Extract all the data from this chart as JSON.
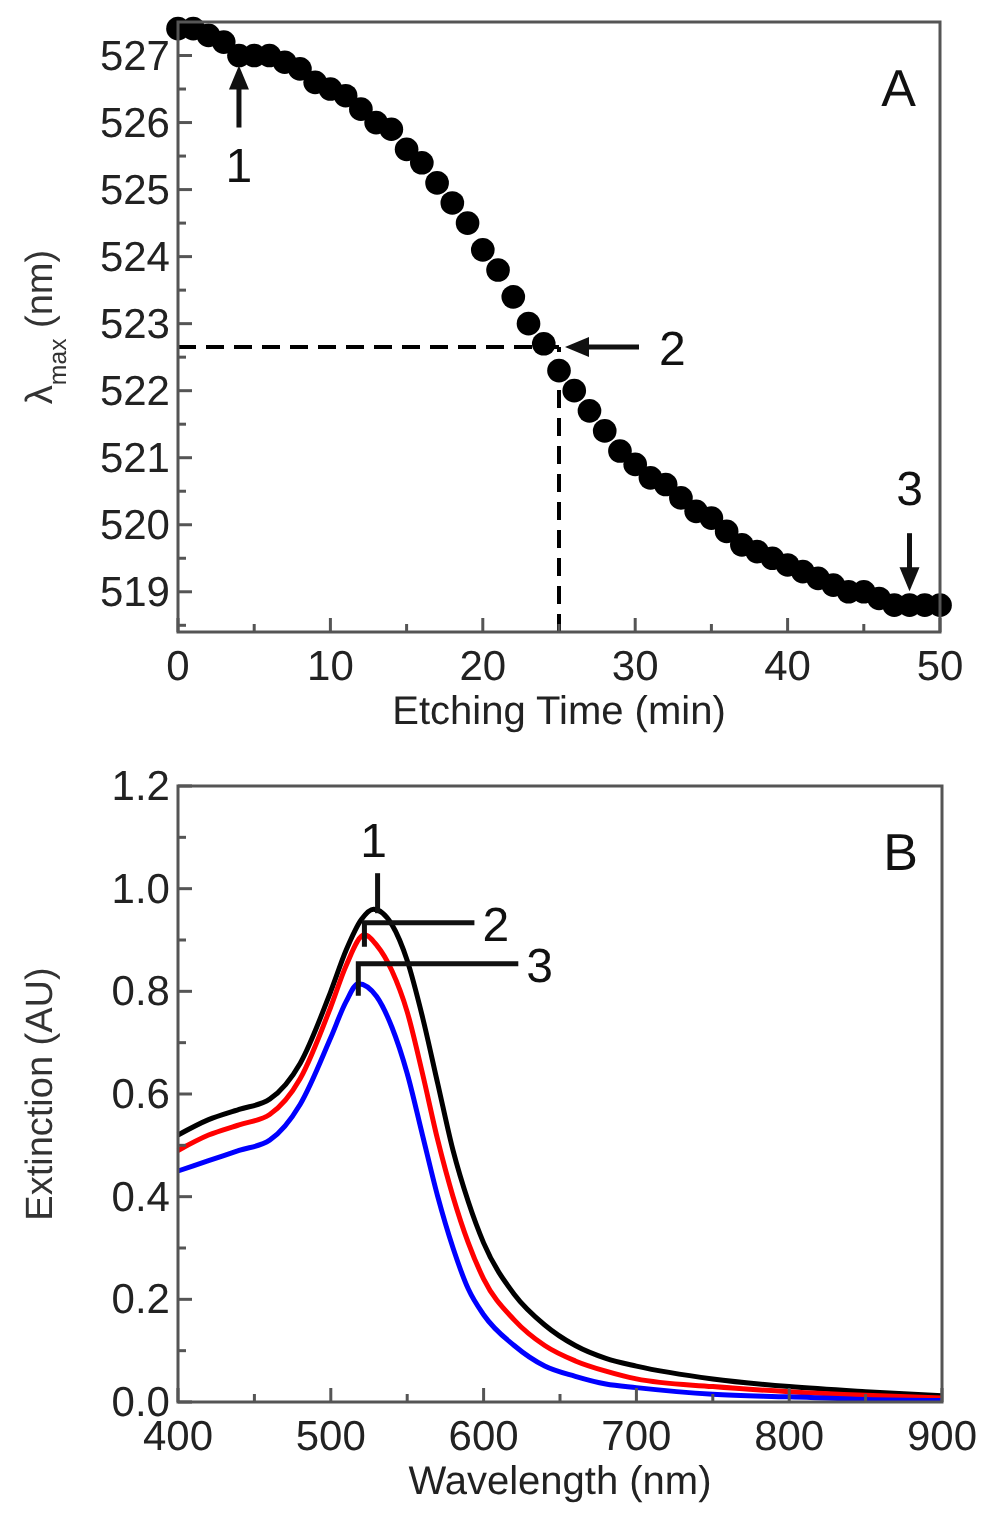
{
  "chart_data": [
    {
      "type": "scatter",
      "xlabel": "Etching Time (min)",
      "ylabel": "λ$_{max}$ (nm)",
      "xlim": [
        0,
        50
      ],
      "ylim": [
        518.4,
        527.5
      ],
      "xticks": [
        0,
        {
          "value": 5,
          "label": null
        },
        10,
        {
          "value": 15,
          "label": null
        },
        20,
        {
          "value": 25,
          "label": null
        },
        30,
        {
          "value": 35,
          "label": null
        },
        40,
        {
          "value": 45,
          "label": null
        },
        50
      ],
      "yticks": [
        {
          "value": 518.5,
          "label": null
        },
        519,
        {
          "value": 519.5,
          "label": null
        },
        520,
        {
          "value": 520.5,
          "label": null
        },
        521,
        {
          "value": 521.5,
          "label": null
        },
        522,
        {
          "value": 522.5,
          "label": null
        },
        523,
        {
          "value": 523.5,
          "label": null
        },
        524,
        {
          "value": 524.5,
          "label": null
        },
        525,
        {
          "value": 525.5,
          "label": null
        },
        526,
        {
          "value": 526.5,
          "label": null
        },
        527
      ],
      "marker": "circle",
      "grid": false,
      "series": [
        {
          "color": "#000000",
          "x": [
            0,
            1,
            2,
            3,
            4,
            5,
            6,
            7,
            8,
            9,
            10,
            11,
            12,
            13,
            14,
            15,
            16,
            17,
            18,
            19,
            20,
            21,
            22,
            23,
            24,
            25,
            26,
            27,
            28,
            29,
            30,
            31,
            32,
            33,
            34,
            35,
            36,
            37,
            38,
            39,
            40,
            41,
            42,
            43,
            44,
            45,
            46,
            47,
            48,
            49,
            50
          ],
          "values": [
            527.4,
            527.4,
            527.3,
            527.2,
            527.0,
            527.0,
            527.0,
            526.9,
            526.8,
            526.6,
            526.5,
            526.4,
            526.2,
            526.0,
            525.9,
            525.6,
            525.4,
            525.1,
            524.8,
            524.5,
            524.1,
            523.8,
            523.4,
            523.0,
            522.7,
            522.3,
            522.0,
            521.7,
            521.4,
            521.1,
            520.9,
            520.7,
            520.6,
            520.4,
            520.2,
            520.1,
            519.9,
            519.7,
            519.6,
            519.5,
            519.4,
            519.3,
            519.2,
            519.1,
            519.0,
            519.0,
            518.9,
            518.8,
            518.8,
            518.8,
            518.8
          ]
        }
      ],
      "ref_lines": [
        {
          "axis": "y",
          "value": 522.65,
          "line_style": "dashed",
          "color": "#000000"
        },
        {
          "axis": "x",
          "value": 25,
          "line_style": "dashed",
          "color": "#000000"
        }
      ],
      "annotations": [
        "A",
        {
          "text": "1",
          "x": 4,
          "y": 527.0
        },
        {
          "text": "2",
          "x": 25,
          "y": 522.65
        },
        {
          "text": "3",
          "x": 48,
          "y": 518.8
        }
      ]
    },
    {
      "type": "line",
      "xlabel": "Wavelength (nm)",
      "ylabel": "Extinction (AU)",
      "xlim": [
        400,
        900
      ],
      "ylim": [
        0,
        1.2
      ],
      "xticks": [
        400,
        {
          "value": 450,
          "label": null
        },
        500,
        {
          "value": 550,
          "label": null
        },
        600,
        {
          "value": 650,
          "label": null
        },
        700,
        {
          "value": 750,
          "label": null
        },
        800,
        {
          "value": 850,
          "label": null
        },
        900
      ],
      "yticks": [
        {
          "value": 0,
          "label": "0.0"
        },
        {
          "value": 0.1,
          "label": null
        },
        {
          "value": 0.2,
          "label": "0.2"
        },
        {
          "value": 0.3,
          "label": null
        },
        {
          "value": 0.4,
          "label": "0.4"
        },
        {
          "value": 0.5,
          "label": null
        },
        {
          "value": 0.6,
          "label": "0.6"
        },
        {
          "value": 0.7,
          "label": null
        },
        {
          "value": 0.8,
          "label": "0.8"
        },
        {
          "value": 0.9,
          "label": null
        },
        {
          "value": 1.0,
          "label": "1.0"
        },
        {
          "value": 1.1,
          "label": null
        },
        {
          "value": 1.2,
          "label": "1.2"
        }
      ],
      "marker": "none",
      "line_style": "solid",
      "grid": false,
      "series": [
        {
          "color": "#000000",
          "x": [
            400,
            420,
            440,
            460,
            480,
            500,
            510,
            520,
            528,
            540,
            550,
            560,
            570,
            580,
            590,
            600,
            620,
            640,
            660,
            680,
            700,
            750,
            800,
            850,
            900
          ],
          "values": [
            0.52,
            0.55,
            0.57,
            0.59,
            0.66,
            0.8,
            0.88,
            0.94,
            0.96,
            0.93,
            0.86,
            0.75,
            0.62,
            0.49,
            0.39,
            0.31,
            0.21,
            0.15,
            0.11,
            0.085,
            0.07,
            0.045,
            0.03,
            0.02,
            0.012
          ]
        },
        {
          "color": "#ff0000",
          "x": [
            400,
            420,
            440,
            460,
            480,
            500,
            510,
            522,
            530,
            540,
            550,
            560,
            570,
            580,
            590,
            600,
            620,
            640,
            660,
            680,
            700,
            750,
            800,
            850,
            900
          ],
          "values": [
            0.49,
            0.52,
            0.54,
            0.56,
            0.63,
            0.77,
            0.85,
            0.91,
            0.89,
            0.84,
            0.76,
            0.64,
            0.51,
            0.4,
            0.31,
            0.24,
            0.16,
            0.11,
            0.08,
            0.06,
            0.045,
            0.03,
            0.02,
            0.013,
            0.008
          ]
        },
        {
          "color": "#0000ff",
          "x": [
            400,
            420,
            440,
            460,
            480,
            500,
            510,
            518,
            530,
            540,
            550,
            560,
            570,
            580,
            590,
            600,
            620,
            640,
            660,
            680,
            700,
            750,
            800,
            850,
            900
          ],
          "values": [
            0.45,
            0.47,
            0.49,
            0.51,
            0.58,
            0.71,
            0.78,
            0.815,
            0.79,
            0.73,
            0.64,
            0.52,
            0.4,
            0.3,
            0.22,
            0.17,
            0.11,
            0.07,
            0.05,
            0.035,
            0.028,
            0.015,
            0.01,
            0.005,
            0.003
          ]
        }
      ],
      "annotations": [
        "B",
        {
          "text": "1",
          "x": 528,
          "y": 0.96
        },
        {
          "text": "2",
          "x": 522,
          "y": 0.91
        },
        {
          "text": "3",
          "x": 518,
          "y": 0.815
        }
      ]
    }
  ]
}
